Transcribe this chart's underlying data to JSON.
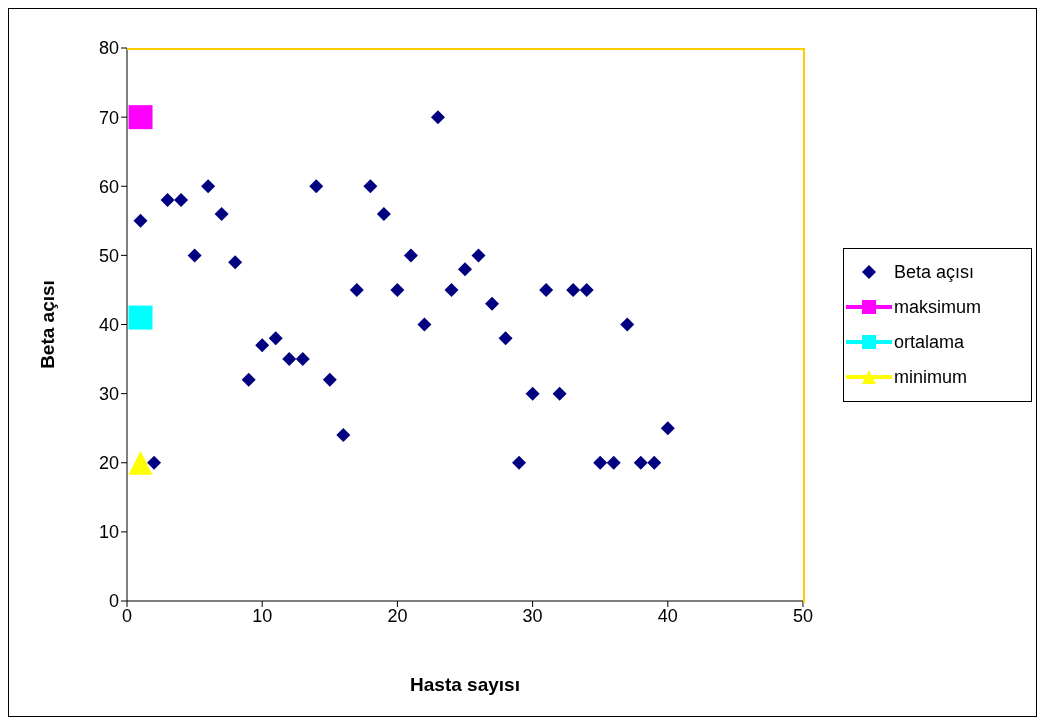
{
  "chart_data": {
    "type": "scatter",
    "xlabel": "Hasta sayısı",
    "ylabel": "Beta açısı",
    "xlim": [
      0,
      50
    ],
    "xticks": [
      0,
      10,
      20,
      30,
      40,
      50
    ],
    "ylim": [
      0,
      80
    ],
    "yticks": [
      0,
      10,
      20,
      30,
      40,
      50,
      60,
      70,
      80
    ],
    "grid": false,
    "legend": "right",
    "series": [
      {
        "name": "Beta açısı",
        "color": "#000080",
        "marker": "diamond",
        "x": [
          1,
          2,
          3,
          4,
          5,
          6,
          7,
          8,
          9,
          10,
          11,
          12,
          13,
          14,
          15,
          16,
          17,
          18,
          19,
          20,
          21,
          22,
          23,
          24,
          25,
          26,
          27,
          28,
          29,
          30,
          31,
          32,
          33,
          34,
          35,
          36,
          37,
          38,
          39,
          40
        ],
        "values": [
          55,
          20,
          58,
          58,
          50,
          60,
          56,
          49,
          32,
          37,
          38,
          35,
          35,
          60,
          32,
          24,
          45,
          60,
          56,
          45,
          50,
          40,
          70,
          45,
          48,
          50,
          43,
          38,
          20,
          30,
          45,
          30,
          45,
          45,
          20,
          20,
          40,
          20,
          20,
          25
        ]
      },
      {
        "name": "maksimum",
        "color": "#ff00ff",
        "marker": "square",
        "x": [
          1
        ],
        "values": [
          70
        ]
      },
      {
        "name": "ortalama",
        "color": "#00ffff",
        "marker": "square",
        "x": [
          1
        ],
        "values": [
          41
        ]
      },
      {
        "name": "minimum",
        "color": "#ffff00",
        "marker": "triangle",
        "x": [
          1
        ],
        "values": [
          20
        ]
      }
    ]
  }
}
